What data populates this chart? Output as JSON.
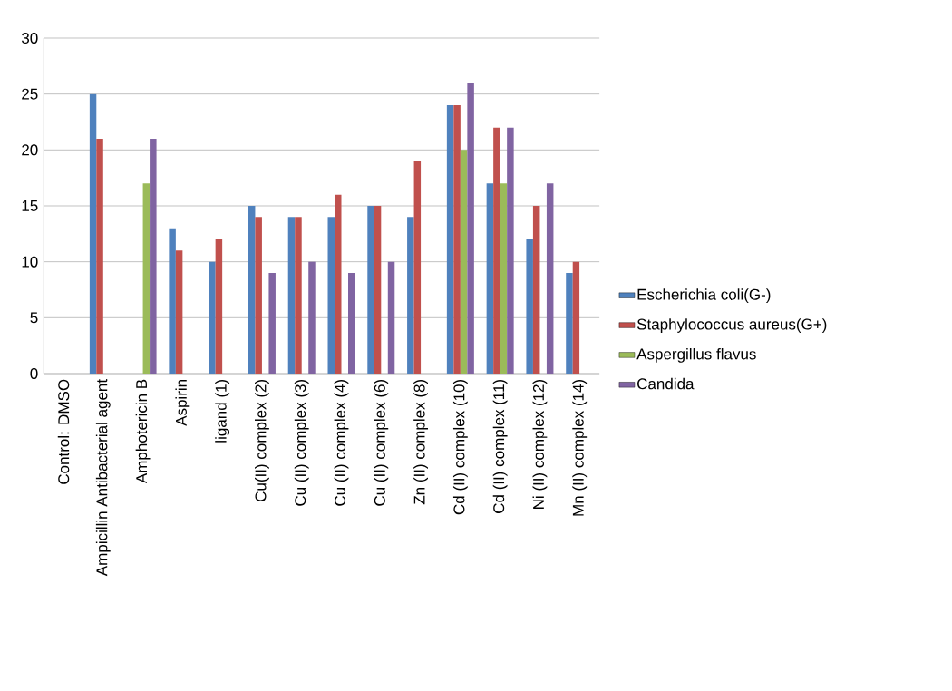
{
  "chart_data": {
    "type": "bar",
    "categories": [
      "Control: DMSO",
      "Ampicillin Antibacterial agent",
      "Amphotericin B",
      "Aspirin",
      "ligand (1)",
      "Cu(II) complex (2)",
      "Cu (II) complex (3)",
      "Cu (II) complex (4)",
      "Cu (II) complex (6)",
      "Zn (II) complex (8)",
      "Cd (II) complex (10)",
      "Cd (II) complex (11)",
      "Ni (II) complex (12)",
      "Mn (II) complex (14)"
    ],
    "series": [
      {
        "name": "Escherichia coli(G-)",
        "color": "#4f81bd",
        "values": [
          null,
          25,
          null,
          13,
          10,
          15,
          14,
          14,
          15,
          14,
          24,
          17,
          12,
          9
        ]
      },
      {
        "name": "Staphylococcus aureus(G+)",
        "color": "#c0504d",
        "values": [
          null,
          21,
          null,
          11,
          12,
          14,
          14,
          16,
          15,
          19,
          24,
          22,
          15,
          10
        ]
      },
      {
        "name": "Aspergillus flavus",
        "color": "#9bbb59",
        "values": [
          null,
          null,
          17,
          null,
          null,
          null,
          null,
          null,
          null,
          null,
          20,
          17,
          null,
          null
        ]
      },
      {
        "name": "Candida",
        "color": "#8064a2",
        "values": [
          null,
          null,
          21,
          null,
          null,
          9,
          10,
          9,
          10,
          null,
          26,
          22,
          17,
          null
        ]
      }
    ],
    "ylim": [
      0,
      30
    ],
    "yticks": [
      0,
      5,
      10,
      15,
      20,
      25,
      30
    ],
    "grid": "y",
    "legend": "right"
  }
}
